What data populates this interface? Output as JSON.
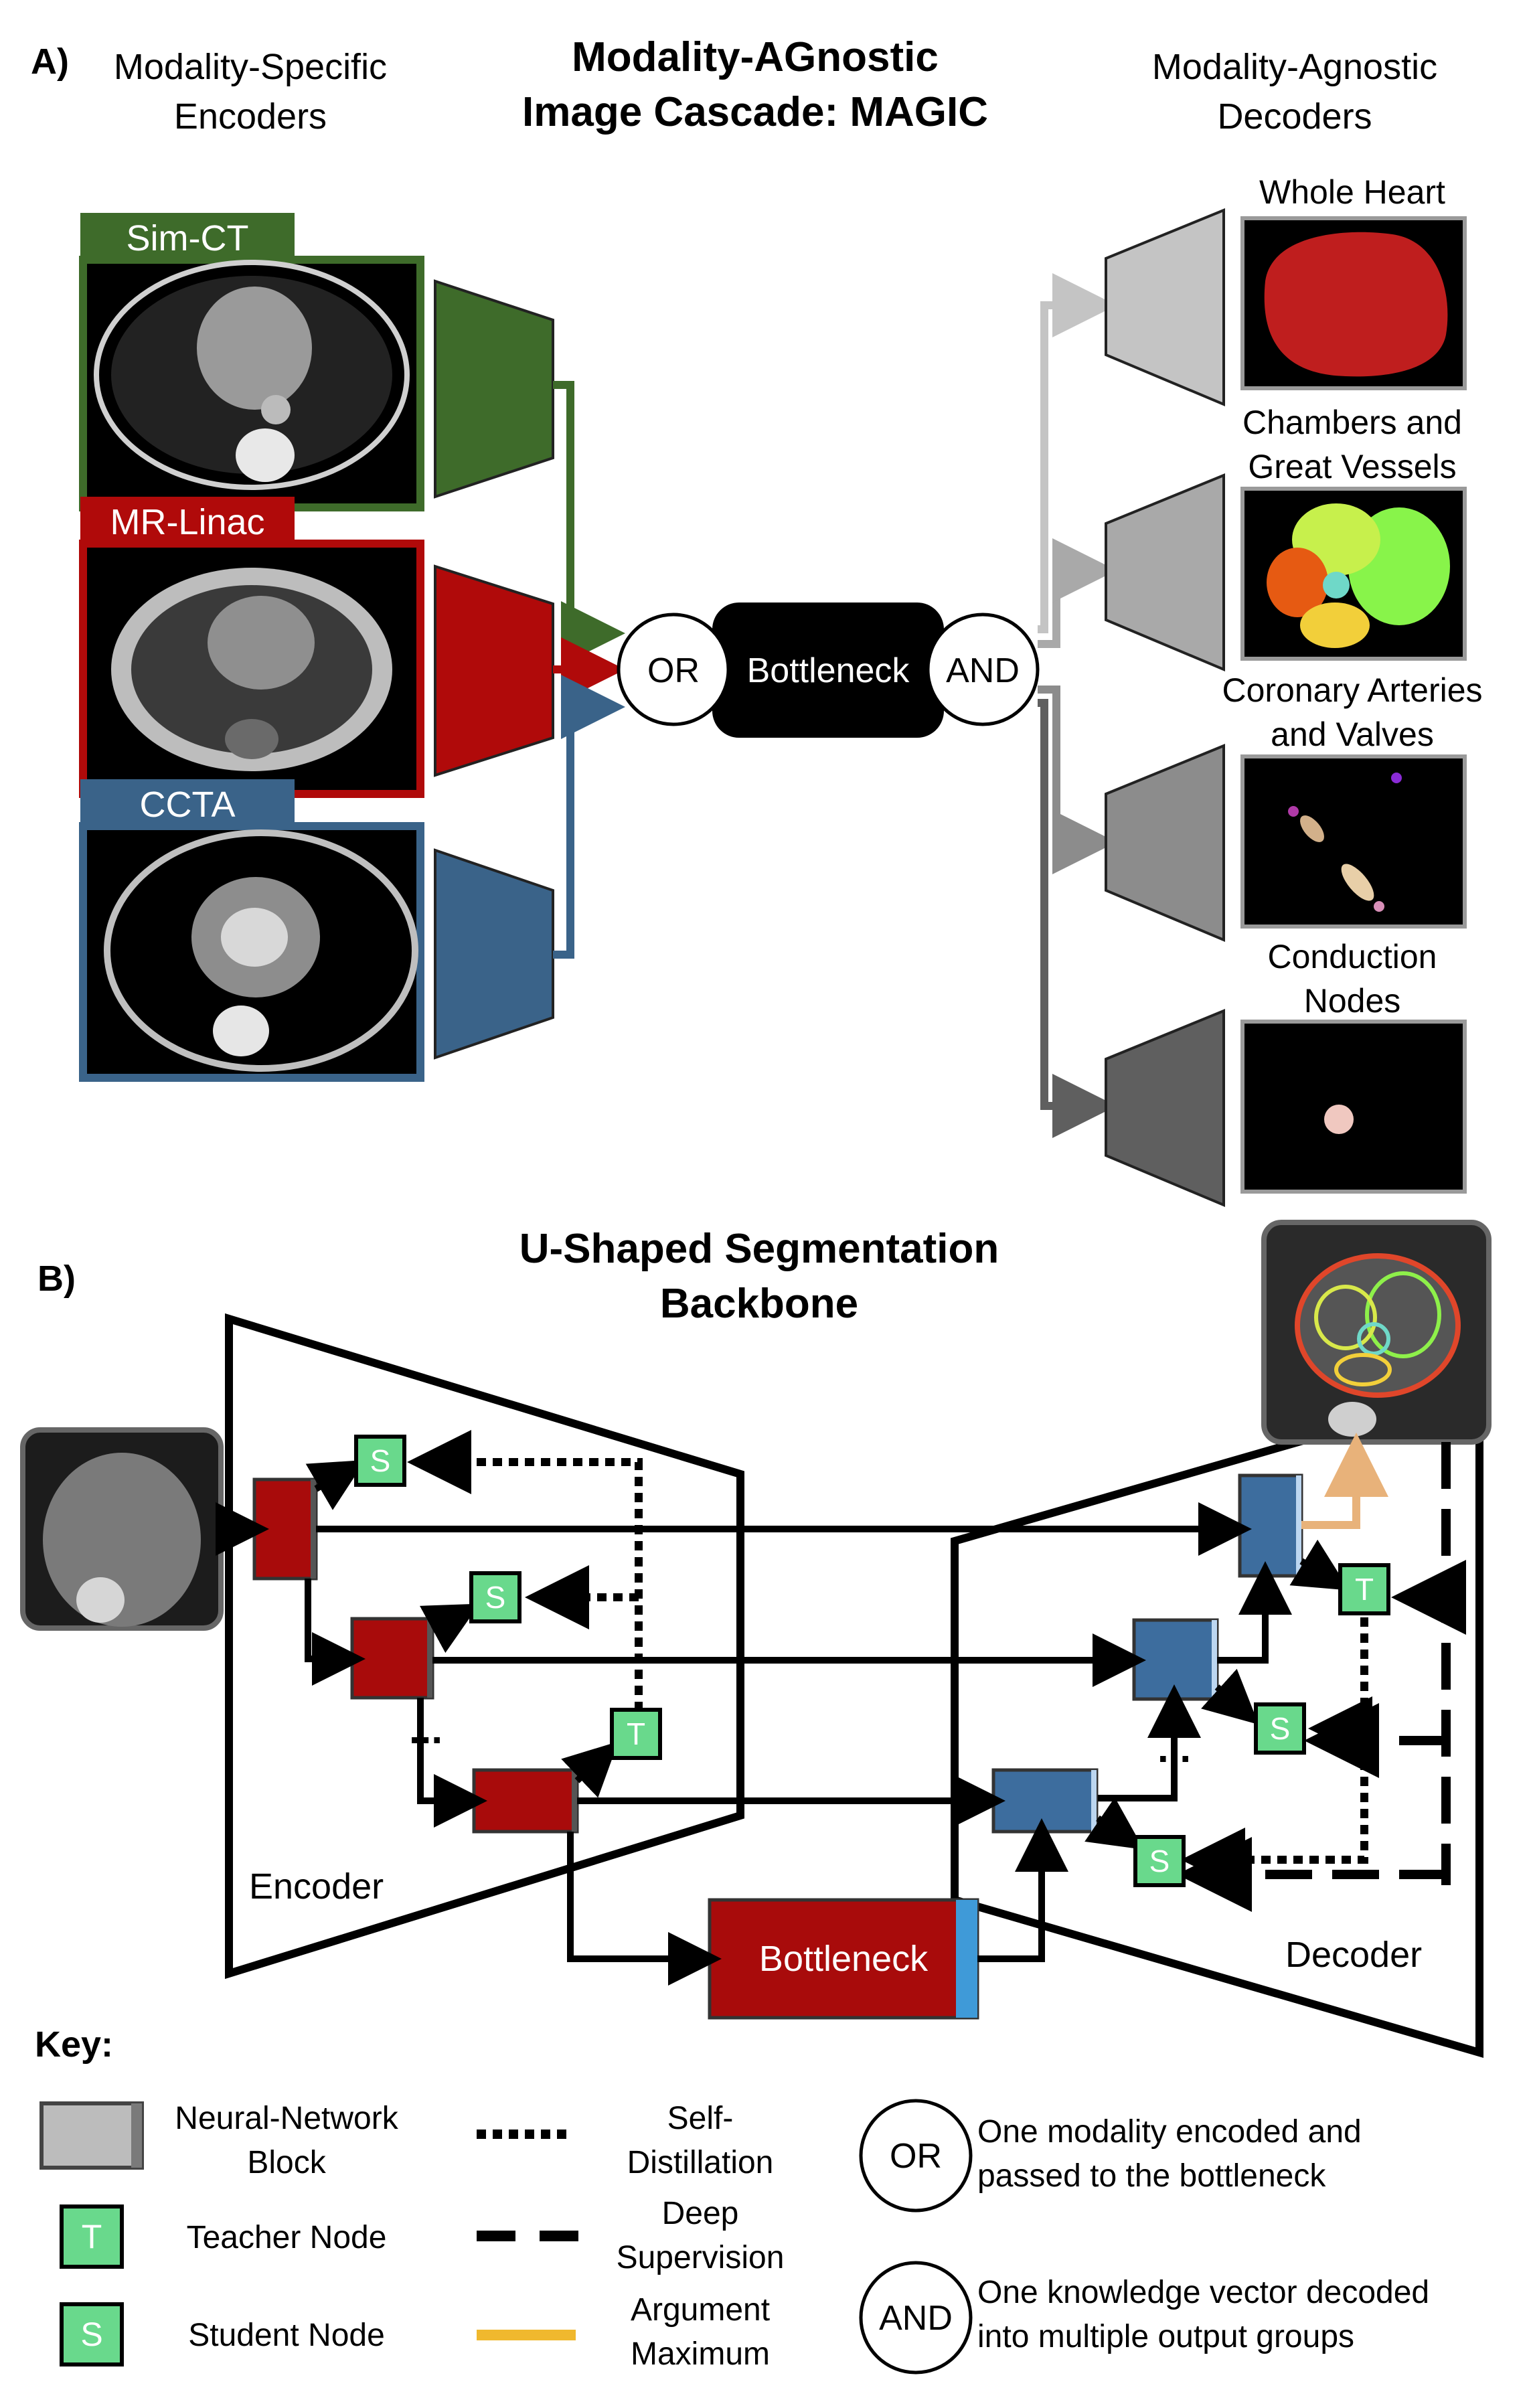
{
  "panel_a": {
    "label": "A)",
    "title_line1": "Modality-AGnostic",
    "title_line2": "Image Cascade: MAGIC",
    "enc_header_line1": "Modality-Specific",
    "enc_header_line2": "Encoders",
    "dec_header_line1": "Modality-Agnostic",
    "dec_header_line2": "Decoders",
    "modalities": [
      {
        "name": "Sim-CT",
        "color": "#3e6b2a"
      },
      {
        "name": "MR-Linac",
        "color": "#b00a0a"
      },
      {
        "name": "CCTA",
        "color": "#3a6389"
      }
    ],
    "or_label": "OR",
    "bottleneck_label": "Bottleneck",
    "and_label": "AND",
    "outputs": [
      {
        "line1": "Whole Heart",
        "line2": "",
        "color": "#c4c4c4"
      },
      {
        "line1": "Chambers and",
        "line2": "Great Vessels",
        "color": "#a9a9a9"
      },
      {
        "line1": "Coronary Arteries",
        "line2": "and Valves",
        "color": "#8c8c8c"
      },
      {
        "line1": "Conduction",
        "line2": "Nodes",
        "color": "#5f5f5f"
      }
    ]
  },
  "panel_b": {
    "label": "B)",
    "title_line1": "U-Shaped Segmentation",
    "title_line2": "Backbone",
    "encoder_label": "Encoder",
    "decoder_label": "Decoder",
    "bottleneck_label": "Bottleneck",
    "teacher_letter": "T",
    "student_letter": "S",
    "ellipsis": "...",
    "encoder_color": "#a80b0b",
    "decoder_color": "#3d6d9e",
    "node_color": "#69d98c",
    "argmax_color": "#e8b27a"
  },
  "key": {
    "title": "Key:",
    "nn_block_line1": "Neural-Network",
    "nn_block_line2": "Block",
    "teacher_node": "Teacher Node",
    "student_node": "Student Node",
    "self_distill_line1": "Self-",
    "self_distill_line2": "Distillation",
    "deep_sup_line1": "Deep",
    "deep_sup_line2": "Supervision",
    "argmax_line1": "Argument",
    "argmax_line2": "Maximum",
    "argmax_color": "#f0b82e",
    "or_desc_line1": "One modality encoded and",
    "or_desc_line2": "passed to the bottleneck",
    "and_desc_line1": "One knowledge vector decoded",
    "and_desc_line2": "into multiple output groups"
  }
}
